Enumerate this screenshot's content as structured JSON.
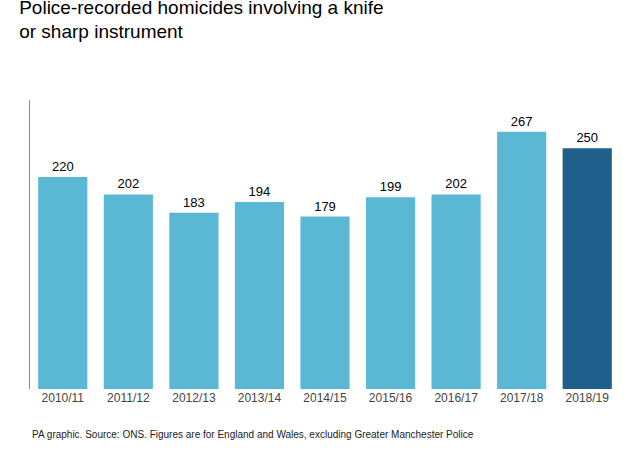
{
  "chart_data": {
    "type": "bar",
    "title": "Police-recorded homicides involving a knife\nor sharp instrument",
    "categories": [
      "2010/11",
      "2011/12",
      "2012/13",
      "2013/14",
      "2014/15",
      "2015/16",
      "2016/17",
      "2017/18",
      "2018/19"
    ],
    "values": [
      220,
      202,
      183,
      194,
      179,
      199,
      202,
      267,
      250
    ],
    "colors": [
      "#5ab8d5",
      "#5ab8d5",
      "#5ab8d5",
      "#5ab8d5",
      "#5ab8d5",
      "#5ab8d5",
      "#5ab8d5",
      "#5ab8d5",
      "#1e5f8c"
    ],
    "ylim": [
      0,
      300
    ],
    "grid": false,
    "data_labels": true,
    "tick_labels": "x",
    "annotations": [
      "PA graphic. Source: ONS. Figures are for England and Wales, excluding Greater Manchester Police"
    ]
  }
}
